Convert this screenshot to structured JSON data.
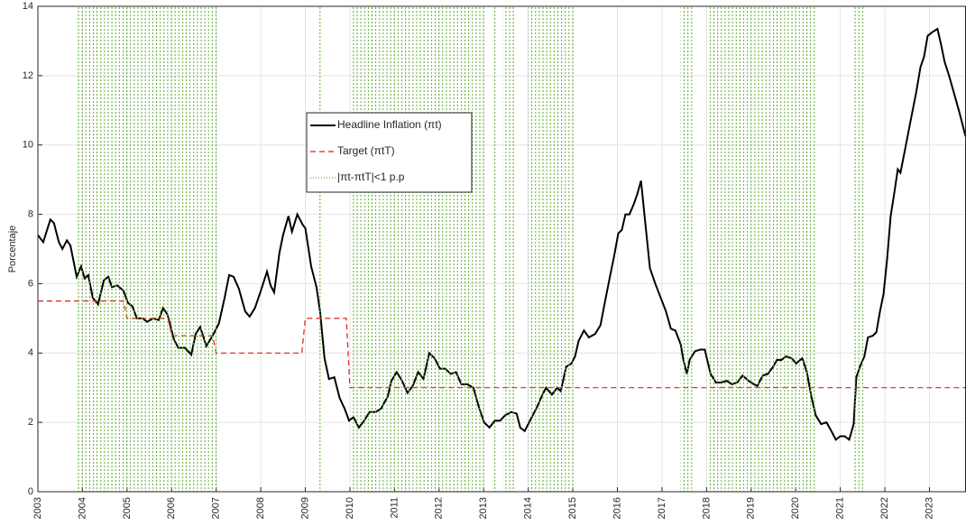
{
  "chart_data": {
    "type": "line",
    "ylabel": "Porcentaje",
    "xlim": [
      2003,
      2023.81
    ],
    "ylim": [
      0,
      14
    ],
    "xticks": [
      2003,
      2004,
      2005,
      2006,
      2007,
      2008,
      2009,
      2010,
      2011,
      2012,
      2013,
      2014,
      2015,
      2016,
      2017,
      2018,
      2019,
      2020,
      2021,
      2022,
      2023
    ],
    "yticks": [
      0,
      2,
      4,
      6,
      8,
      10,
      12,
      14
    ],
    "grid": true,
    "legend": "upper center",
    "series": [
      {
        "name": "Headline Inflation (πt)",
        "color": "#000000",
        "style": "solid",
        "x": [
          2003.0,
          2003.12,
          2003.28,
          2003.36,
          2003.47,
          2003.55,
          2003.65,
          2003.73,
          2003.87,
          2003.97,
          2004.05,
          2004.13,
          2004.23,
          2004.35,
          2004.48,
          2004.58,
          2004.66,
          2004.78,
          2004.92,
          2005.02,
          2005.12,
          2005.22,
          2005.35,
          2005.45,
          2005.59,
          2005.71,
          2005.81,
          2005.91,
          2006.05,
          2006.15,
          2006.3,
          2006.44,
          2006.54,
          2006.64,
          2006.78,
          2006.92,
          2007.06,
          2007.19,
          2007.29,
          2007.39,
          2007.51,
          2007.65,
          2007.75,
          2007.87,
          2007.99,
          2008.14,
          2008.22,
          2008.3,
          2008.42,
          2008.5,
          2008.62,
          2008.7,
          2008.82,
          2008.94,
          2009.0,
          2009.13,
          2009.25,
          2009.33,
          2009.43,
          2009.53,
          2009.65,
          2009.77,
          2009.88,
          2009.98,
          2010.08,
          2010.2,
          2010.32,
          2010.44,
          2010.58,
          2010.7,
          2010.85,
          2010.93,
          2011.05,
          2011.17,
          2011.29,
          2011.41,
          2011.53,
          2011.65,
          2011.78,
          2011.9,
          2012.02,
          2012.14,
          2012.26,
          2012.38,
          2012.5,
          2012.63,
          2012.77,
          2012.89,
          2013.01,
          2013.13,
          2013.25,
          2013.37,
          2013.48,
          2013.62,
          2013.74,
          2013.82,
          2013.92,
          2014.08,
          2014.2,
          2014.32,
          2014.4,
          2014.53,
          2014.65,
          2014.73,
          2014.85,
          2014.97,
          2015.05,
          2015.13,
          2015.25,
          2015.36,
          2015.5,
          2015.62,
          2015.74,
          2015.84,
          2015.92,
          2016.02,
          2016.1,
          2016.18,
          2016.27,
          2016.37,
          2016.45,
          2016.53,
          2016.61,
          2016.73,
          2016.85,
          2016.97,
          2017.09,
          2017.2,
          2017.3,
          2017.42,
          2017.48,
          2017.56,
          2017.62,
          2017.74,
          2017.86,
          2017.96,
          2018.09,
          2018.21,
          2018.33,
          2018.45,
          2018.57,
          2018.69,
          2018.81,
          2018.94,
          2019.06,
          2019.14,
          2019.26,
          2019.38,
          2019.49,
          2019.58,
          2019.68,
          2019.78,
          2019.91,
          2020.01,
          2020.15,
          2020.25,
          2020.35,
          2020.45,
          2020.57,
          2020.69,
          2020.8,
          2020.9,
          2021.0,
          2021.1,
          2021.2,
          2021.3,
          2021.36,
          2021.44,
          2021.54,
          2021.62,
          2021.73,
          2021.81,
          2021.89,
          2021.97,
          2022.05,
          2022.13,
          2022.21,
          2022.29,
          2022.35,
          2022.45,
          2022.57,
          2022.7,
          2022.8,
          2022.88,
          2022.96,
          2023.06,
          2023.18,
          2023.26,
          2023.34,
          2023.44,
          2023.55,
          2023.67,
          2023.81
        ],
        "values": [
          7.4,
          7.2,
          7.85,
          7.75,
          7.2,
          7.0,
          7.25,
          7.1,
          6.2,
          6.5,
          6.15,
          6.25,
          5.6,
          5.4,
          6.1,
          6.2,
          5.9,
          5.95,
          5.8,
          5.45,
          5.35,
          5.0,
          5.0,
          4.9,
          5.0,
          4.95,
          5.3,
          5.1,
          4.4,
          4.15,
          4.15,
          3.95,
          4.55,
          4.75,
          4.2,
          4.5,
          4.85,
          5.6,
          6.25,
          6.2,
          5.85,
          5.2,
          5.05,
          5.3,
          5.75,
          6.35,
          5.95,
          5.75,
          6.9,
          7.4,
          7.95,
          7.5,
          8.0,
          7.7,
          7.6,
          6.5,
          5.9,
          5.2,
          3.85,
          3.25,
          3.3,
          2.7,
          2.4,
          2.05,
          2.15,
          1.85,
          2.05,
          2.3,
          2.3,
          2.4,
          2.75,
          3.2,
          3.45,
          3.2,
          2.85,
          3.05,
          3.45,
          3.25,
          4.0,
          3.85,
          3.55,
          3.55,
          3.4,
          3.45,
          3.1,
          3.1,
          3.0,
          2.45,
          2.0,
          1.85,
          2.05,
          2.05,
          2.2,
          2.3,
          2.25,
          1.85,
          1.75,
          2.15,
          2.45,
          2.8,
          3.0,
          2.8,
          3.0,
          2.9,
          3.6,
          3.7,
          3.9,
          4.35,
          4.65,
          4.45,
          4.55,
          4.8,
          5.6,
          6.25,
          6.75,
          7.45,
          7.55,
          8.0,
          8.0,
          8.3,
          8.6,
          8.97,
          7.95,
          6.45,
          6.0,
          5.6,
          5.2,
          4.7,
          4.65,
          4.25,
          3.8,
          3.4,
          3.8,
          4.05,
          4.1,
          4.1,
          3.4,
          3.15,
          3.15,
          3.2,
          3.1,
          3.15,
          3.35,
          3.2,
          3.1,
          3.05,
          3.35,
          3.4,
          3.6,
          3.8,
          3.8,
          3.9,
          3.85,
          3.7,
          3.85,
          3.45,
          2.75,
          2.2,
          1.95,
          2.0,
          1.75,
          1.5,
          1.6,
          1.6,
          1.5,
          1.95,
          3.3,
          3.6,
          3.9,
          4.45,
          4.5,
          4.6,
          5.2,
          5.7,
          6.7,
          7.95,
          8.6,
          9.3,
          9.2,
          9.85,
          10.65,
          11.5,
          12.25,
          12.55,
          13.15,
          13.25,
          13.35,
          12.9,
          12.4,
          12.0,
          11.5,
          10.95,
          10.25
        ]
      },
      {
        "name": "Target (πtT)",
        "color": "#e0201b",
        "style": "dashed",
        "x": [
          2003,
          2004.92,
          2005.0,
          2005.92,
          2006.0,
          2006.92,
          2007.0,
          2008.92,
          2009.0,
          2009.92,
          2010.0,
          2023.81
        ],
        "values": [
          5.5,
          5.5,
          5.0,
          5.0,
          4.5,
          4.5,
          4.0,
          4.0,
          5.0,
          5.0,
          3.0,
          3.0
        ]
      },
      {
        "name": "|πt-πtT|<1 p.p",
        "color": "#5aab2e",
        "style": "dotted",
        "periods": [
          [
            2003.87,
            2007.06
          ],
          [
            2009.29,
            2009.39
          ],
          [
            2010.02,
            2013.05
          ],
          [
            2013.22,
            2013.3
          ],
          [
            2013.42,
            2013.7
          ],
          [
            2014.0,
            2015.03
          ],
          [
            2017.42,
            2017.68
          ],
          [
            2018.03,
            2020.45
          ],
          [
            2021.32,
            2021.52
          ]
        ]
      }
    ]
  }
}
